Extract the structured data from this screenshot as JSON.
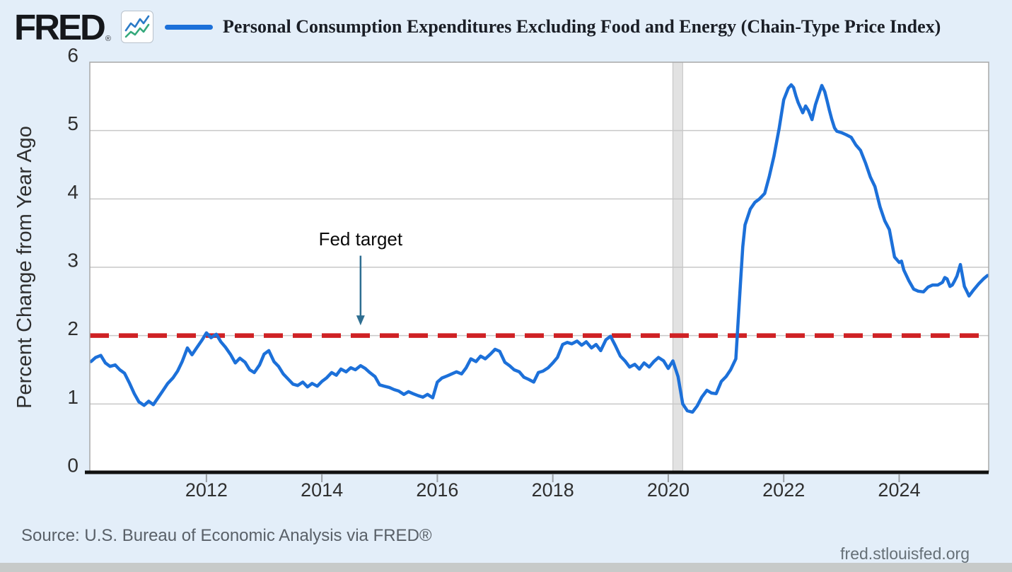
{
  "header": {
    "logo_text": "FRED",
    "registered_mark": "®",
    "legend": {
      "series_label": "Personal Consumption Expenditures Excluding Food and Energy (Chain-Type Price Index)",
      "swatch_color": "#1c70d9"
    }
  },
  "footer": {
    "source_text": "Source: U.S. Bureau of Economic Analysis via FRED®",
    "site_url": "fred.stlouisfed.org"
  },
  "colors": {
    "page_bg": "#e3eef9",
    "plot_bg": "#ffffff",
    "plot_border": "#a8a8a8",
    "grid": "#c8c8c8",
    "axis_black": "#111111",
    "tick": "#9aa0a6",
    "tick_label": "#2f2f2f",
    "series_blue": "#1c70d9",
    "target_red": "#cf2124",
    "arrow_teal": "#2e6e91",
    "recession_band": "#e2e2e2",
    "recession_band_edge": "#c2c2c2",
    "icon_blue": "#2b7bc7",
    "icon_green": "#35a97c"
  },
  "chart_data": {
    "type": "line",
    "title": "Personal Consumption Expenditures Excluding Food and Energy (Chain-Type Price Index)",
    "xlabel": "",
    "ylabel": "Percent Change from Year Ago",
    "xlim": [
      2009.98,
      2025.55
    ],
    "ylim": [
      0,
      6
    ],
    "x_ticks": [
      2012,
      2014,
      2016,
      2018,
      2020,
      2022,
      2024
    ],
    "y_ticks": [
      0,
      1,
      2,
      3,
      4,
      5,
      6
    ],
    "grid_values": [
      1,
      2,
      3,
      4,
      5
    ],
    "grid": "horizontal",
    "legend_position": "top",
    "recession_band": {
      "start": 2020.08,
      "end": 2020.25
    },
    "fed_target": {
      "label": "Fed target",
      "value": 2.0,
      "label_year": 2014.67,
      "label_value": 3.32,
      "arrow_from_value": 3.17,
      "arrow_to_value": 2.15
    },
    "series": [
      {
        "name": "Personal Consumption Expenditures Excluding Food and Energy (Chain-Type Price Index)",
        "color": "#1c70d9",
        "points": [
          [
            2010.0,
            1.62
          ],
          [
            2010.08,
            1.68
          ],
          [
            2010.17,
            1.71
          ],
          [
            2010.25,
            1.6
          ],
          [
            2010.33,
            1.55
          ],
          [
            2010.42,
            1.57
          ],
          [
            2010.5,
            1.5
          ],
          [
            2010.58,
            1.45
          ],
          [
            2010.67,
            1.3
          ],
          [
            2010.75,
            1.15
          ],
          [
            2010.83,
            1.03
          ],
          [
            2010.92,
            0.98
          ],
          [
            2011.0,
            1.04
          ],
          [
            2011.08,
            0.99
          ],
          [
            2011.17,
            1.1
          ],
          [
            2011.25,
            1.2
          ],
          [
            2011.33,
            1.3
          ],
          [
            2011.42,
            1.38
          ],
          [
            2011.5,
            1.48
          ],
          [
            2011.58,
            1.62
          ],
          [
            2011.67,
            1.82
          ],
          [
            2011.75,
            1.72
          ],
          [
            2011.83,
            1.82
          ],
          [
            2011.92,
            1.93
          ],
          [
            2012.0,
            2.04
          ],
          [
            2012.08,
            1.97
          ],
          [
            2012.17,
            2.02
          ],
          [
            2012.25,
            1.91
          ],
          [
            2012.33,
            1.83
          ],
          [
            2012.42,
            1.72
          ],
          [
            2012.5,
            1.6
          ],
          [
            2012.58,
            1.67
          ],
          [
            2012.67,
            1.61
          ],
          [
            2012.75,
            1.5
          ],
          [
            2012.83,
            1.46
          ],
          [
            2012.92,
            1.57
          ],
          [
            2013.0,
            1.73
          ],
          [
            2013.08,
            1.78
          ],
          [
            2013.17,
            1.62
          ],
          [
            2013.25,
            1.55
          ],
          [
            2013.33,
            1.44
          ],
          [
            2013.42,
            1.36
          ],
          [
            2013.5,
            1.29
          ],
          [
            2013.58,
            1.27
          ],
          [
            2013.67,
            1.32
          ],
          [
            2013.75,
            1.25
          ],
          [
            2013.83,
            1.3
          ],
          [
            2013.92,
            1.26
          ],
          [
            2014.0,
            1.33
          ],
          [
            2014.08,
            1.38
          ],
          [
            2014.17,
            1.46
          ],
          [
            2014.25,
            1.42
          ],
          [
            2014.33,
            1.51
          ],
          [
            2014.42,
            1.47
          ],
          [
            2014.5,
            1.53
          ],
          [
            2014.58,
            1.5
          ],
          [
            2014.67,
            1.56
          ],
          [
            2014.75,
            1.52
          ],
          [
            2014.83,
            1.46
          ],
          [
            2014.92,
            1.4
          ],
          [
            2015.0,
            1.28
          ],
          [
            2015.08,
            1.26
          ],
          [
            2015.17,
            1.24
          ],
          [
            2015.25,
            1.21
          ],
          [
            2015.33,
            1.19
          ],
          [
            2015.42,
            1.14
          ],
          [
            2015.5,
            1.18
          ],
          [
            2015.58,
            1.15
          ],
          [
            2015.67,
            1.12
          ],
          [
            2015.75,
            1.1
          ],
          [
            2015.83,
            1.14
          ],
          [
            2015.92,
            1.09
          ],
          [
            2016.0,
            1.32
          ],
          [
            2016.08,
            1.38
          ],
          [
            2016.17,
            1.41
          ],
          [
            2016.25,
            1.44
          ],
          [
            2016.33,
            1.47
          ],
          [
            2016.42,
            1.44
          ],
          [
            2016.5,
            1.53
          ],
          [
            2016.58,
            1.66
          ],
          [
            2016.67,
            1.62
          ],
          [
            2016.75,
            1.7
          ],
          [
            2016.83,
            1.66
          ],
          [
            2016.92,
            1.73
          ],
          [
            2017.0,
            1.8
          ],
          [
            2017.08,
            1.77
          ],
          [
            2017.17,
            1.61
          ],
          [
            2017.25,
            1.56
          ],
          [
            2017.33,
            1.5
          ],
          [
            2017.42,
            1.47
          ],
          [
            2017.5,
            1.39
          ],
          [
            2017.58,
            1.36
          ],
          [
            2017.67,
            1.32
          ],
          [
            2017.75,
            1.46
          ],
          [
            2017.83,
            1.48
          ],
          [
            2017.92,
            1.53
          ],
          [
            2018.0,
            1.6
          ],
          [
            2018.08,
            1.68
          ],
          [
            2018.17,
            1.87
          ],
          [
            2018.25,
            1.9
          ],
          [
            2018.33,
            1.88
          ],
          [
            2018.42,
            1.92
          ],
          [
            2018.5,
            1.86
          ],
          [
            2018.58,
            1.91
          ],
          [
            2018.67,
            1.82
          ],
          [
            2018.75,
            1.87
          ],
          [
            2018.83,
            1.78
          ],
          [
            2018.92,
            1.94
          ],
          [
            2019.0,
            1.99
          ],
          [
            2019.08,
            1.86
          ],
          [
            2019.17,
            1.7
          ],
          [
            2019.25,
            1.63
          ],
          [
            2019.33,
            1.54
          ],
          [
            2019.42,
            1.58
          ],
          [
            2019.5,
            1.51
          ],
          [
            2019.58,
            1.6
          ],
          [
            2019.67,
            1.54
          ],
          [
            2019.75,
            1.62
          ],
          [
            2019.83,
            1.68
          ],
          [
            2019.92,
            1.63
          ],
          [
            2020.0,
            1.52
          ],
          [
            2020.08,
            1.63
          ],
          [
            2020.17,
            1.4
          ],
          [
            2020.25,
            1.0
          ],
          [
            2020.33,
            0.9
          ],
          [
            2020.42,
            0.88
          ],
          [
            2020.5,
            0.97
          ],
          [
            2020.58,
            1.1
          ],
          [
            2020.67,
            1.2
          ],
          [
            2020.75,
            1.16
          ],
          [
            2020.83,
            1.15
          ],
          [
            2020.92,
            1.33
          ],
          [
            2021.0,
            1.4
          ],
          [
            2021.08,
            1.5
          ],
          [
            2021.17,
            1.66
          ],
          [
            2021.21,
            2.2
          ],
          [
            2021.25,
            2.76
          ],
          [
            2021.29,
            3.3
          ],
          [
            2021.33,
            3.62
          ],
          [
            2021.42,
            3.85
          ],
          [
            2021.5,
            3.95
          ],
          [
            2021.58,
            4.0
          ],
          [
            2021.67,
            4.08
          ],
          [
            2021.75,
            4.33
          ],
          [
            2021.83,
            4.62
          ],
          [
            2021.92,
            5.03
          ],
          [
            2022.0,
            5.45
          ],
          [
            2022.08,
            5.62
          ],
          [
            2022.13,
            5.67
          ],
          [
            2022.17,
            5.63
          ],
          [
            2022.21,
            5.51
          ],
          [
            2022.25,
            5.41
          ],
          [
            2022.33,
            5.26
          ],
          [
            2022.38,
            5.36
          ],
          [
            2022.43,
            5.29
          ],
          [
            2022.49,
            5.16
          ],
          [
            2022.55,
            5.38
          ],
          [
            2022.6,
            5.51
          ],
          [
            2022.66,
            5.66
          ],
          [
            2022.71,
            5.57
          ],
          [
            2022.75,
            5.44
          ],
          [
            2022.79,
            5.3
          ],
          [
            2022.83,
            5.17
          ],
          [
            2022.88,
            5.04
          ],
          [
            2022.92,
            4.99
          ],
          [
            2023.0,
            4.97
          ],
          [
            2023.08,
            4.94
          ],
          [
            2023.17,
            4.9
          ],
          [
            2023.25,
            4.79
          ],
          [
            2023.33,
            4.71
          ],
          [
            2023.42,
            4.52
          ],
          [
            2023.5,
            4.32
          ],
          [
            2023.58,
            4.18
          ],
          [
            2023.67,
            3.88
          ],
          [
            2023.75,
            3.68
          ],
          [
            2023.83,
            3.55
          ],
          [
            2023.92,
            3.15
          ],
          [
            2024.0,
            3.07
          ],
          [
            2024.04,
            3.09
          ],
          [
            2024.08,
            2.96
          ],
          [
            2024.17,
            2.8
          ],
          [
            2024.25,
            2.68
          ],
          [
            2024.33,
            2.65
          ],
          [
            2024.42,
            2.64
          ],
          [
            2024.5,
            2.71
          ],
          [
            2024.58,
            2.74
          ],
          [
            2024.67,
            2.74
          ],
          [
            2024.75,
            2.78
          ],
          [
            2024.79,
            2.85
          ],
          [
            2024.83,
            2.83
          ],
          [
            2024.88,
            2.72
          ],
          [
            2024.92,
            2.74
          ],
          [
            2024.96,
            2.8
          ],
          [
            2025.0,
            2.87
          ],
          [
            2025.06,
            3.04
          ],
          [
            2025.13,
            2.72
          ],
          [
            2025.17,
            2.65
          ],
          [
            2025.21,
            2.58
          ],
          [
            2025.29,
            2.67
          ],
          [
            2025.38,
            2.76
          ],
          [
            2025.46,
            2.83
          ],
          [
            2025.53,
            2.88
          ]
        ]
      }
    ]
  }
}
